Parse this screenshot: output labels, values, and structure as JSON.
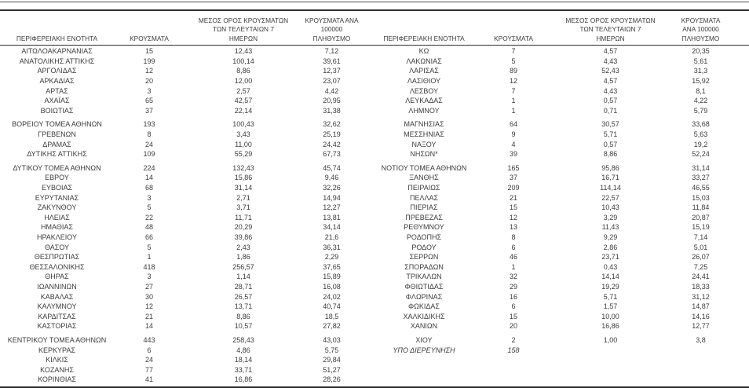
{
  "table": {
    "headers": {
      "region": "ΠΕΡΙΦΕΡΕΙΑΚΗ ΕΝΟΤΗΤΑ",
      "cases": "ΚΡΟΥΣΜΑΤΑ",
      "avg7": "ΜΕΣΟΣ ΟΡΟΣ ΚΡΟΥΣΜΑΤΩΝ\nΤΩΝ ΤΕΛΕΥΤΑΙΩΝ 7\nΗΜΕΡΩΝ",
      "per100k": "ΚΡΟΥΣΜΑΤΑ ΑΝΑ 100000\nΠΛΗΘΥΣΜΟ"
    },
    "text_color": "#3c3c3c",
    "rule_color": "#2e2e2e",
    "rows": [
      {
        "l": [
          "ΑΙΤΩΛΟΑΚΑΡΝΑΝΙΑΣ",
          "15",
          "12,43",
          "7,12"
        ],
        "r": [
          "ΚΩ",
          "7",
          "4,57",
          "20,35"
        ]
      },
      {
        "l": [
          "ΑΝΑΤΟΛΙΚΗΣ ΑΤΤΙΚΗΣ",
          "199",
          "100,14",
          "39,61"
        ],
        "r": [
          "ΛΑΚΩΝΙΑΣ",
          "5",
          "4,43",
          "5,61"
        ]
      },
      {
        "l": [
          "ΑΡΓΟΛΙΔΑΣ",
          "12",
          "8,86",
          "12,37"
        ],
        "r": [
          "ΛΑΡΙΣΑΣ",
          "89",
          "52,43",
          "31,3"
        ]
      },
      {
        "l": [
          "ΑΡΚΑΔΙΑΣ",
          "20",
          "12,00",
          "23,07"
        ],
        "r": [
          "ΛΑΣΙΘΙΟΥ",
          "12",
          "4,57",
          "15,92"
        ]
      },
      {
        "l": [
          "ΑΡΤΑΣ",
          "3",
          "2,57",
          "4,42"
        ],
        "r": [
          "ΛΕΣΒΟΥ",
          "7",
          "4,43",
          "8,1"
        ]
      },
      {
        "l": [
          "ΑΧΑΪΑΣ",
          "65",
          "42,57",
          "20,95"
        ],
        "r": [
          "ΛΕΥΚΑΔΑΣ",
          "1",
          "0,57",
          "4,22"
        ]
      },
      {
        "l": [
          "ΒΟΙΩΤΙΑΣ",
          "37",
          "22,14",
          "31,38"
        ],
        "r": [
          "ΛΗΜΝΟΥ",
          "1",
          "0,71",
          "5,79"
        ]
      },
      {
        "gap": true,
        "l": [
          "ΒΟΡΕΙΟΥ ΤΟΜΕΑ ΑΘΗΝΩΝ",
          "193",
          "100,43",
          "32,62"
        ],
        "r": [
          "ΜΑΓΝΗΣΙΑΣ",
          "64",
          "30,57",
          "33,68"
        ]
      },
      {
        "l": [
          "ΓΡΕΒΕΝΩΝ",
          "8",
          "3,43",
          "25,19"
        ],
        "r": [
          "ΜΕΣΣΗΝΙΑΣ",
          "9",
          "5,71",
          "5,63"
        ]
      },
      {
        "l": [
          "ΔΡΑΜΑΣ",
          "24",
          "11,00",
          "24,42"
        ],
        "r": [
          "ΝΑΞΟΥ",
          "4",
          "0,57",
          "19,2"
        ]
      },
      {
        "l": [
          "ΔΥΤΙΚΗΣ ΑΤΤΙΚΗΣ",
          "109",
          "55,29",
          "67,73"
        ],
        "r": [
          "ΝΗΣΩΝ*",
          "39",
          "8,86",
          "52,24"
        ]
      },
      {
        "gap": true,
        "l": [
          "ΔΥΤΙΚΟΥ ΤΟΜΕΑ ΑΘΗΝΩΝ",
          "224",
          "132,43",
          "45,74"
        ],
        "r": [
          "ΝΟΤΙΟΥ ΤΟΜΕΑ ΑΘΗΝΩΝ",
          "165",
          "95,86",
          "31,14"
        ]
      },
      {
        "l": [
          "ΕΒΡΟΥ",
          "14",
          "15,86",
          "9,46"
        ],
        "r": [
          "ΞΑΝΘΗΣ",
          "37",
          "16,71",
          "33,27"
        ]
      },
      {
        "l": [
          "ΕΥΒΟΙΑΣ",
          "68",
          "31,14",
          "32,26"
        ],
        "r": [
          "ΠΕΙΡΑΙΩΣ",
          "209",
          "114,14",
          "46,55"
        ]
      },
      {
        "l": [
          "ΕΥΡΥΤΑΝΙΑΣ",
          "3",
          "2,71",
          "14,94"
        ],
        "r": [
          "ΠΕΛΛΑΣ",
          "21",
          "22,57",
          "15,03"
        ]
      },
      {
        "l": [
          "ΖΑΚΥΝΘΟΥ",
          "5",
          "3,71",
          "12,27"
        ],
        "r": [
          "ΠΙΕΡΙΑΣ",
          "15",
          "10,43",
          "11,84"
        ]
      },
      {
        "l": [
          "ΗΛΕΙΑΣ",
          "22",
          "11,71",
          "13,81"
        ],
        "r": [
          "ΠΡΕΒΕΖΑΣ",
          "12",
          "3,29",
          "20,87"
        ]
      },
      {
        "l": [
          "ΗΜΑΘΙΑΣ",
          "48",
          "20,29",
          "34,14"
        ],
        "r": [
          "ΡΕΘΥΜΝΟΥ",
          "13",
          "11,43",
          "15,19"
        ]
      },
      {
        "l": [
          "ΗΡΑΚΛΕΙΟΥ",
          "66",
          "39,86",
          "21,6"
        ],
        "r": [
          "ΡΟΔΟΠΗΣ",
          "8",
          "9,29",
          "7,14"
        ]
      },
      {
        "l": [
          "ΘΑΣΟΥ",
          "5",
          "2,43",
          "36,31"
        ],
        "r": [
          "ΡΟΔΟΥ",
          "6",
          "2,86",
          "5,01"
        ]
      },
      {
        "l": [
          "ΘΕΣΠΡΩΤΙΑΣ",
          "1",
          "1,86",
          "2,29"
        ],
        "r": [
          "ΣΕΡΡΩΝ",
          "46",
          "23,71",
          "26,07"
        ]
      },
      {
        "l": [
          "ΘΕΣΣΑΛΟΝΙΚΗΣ",
          "418",
          "256,57",
          "37,65"
        ],
        "r": [
          "ΣΠΟΡΑΔΩΝ",
          "1",
          "0,43",
          "7,25"
        ]
      },
      {
        "l": [
          "ΘΗΡΑΣ",
          "3",
          "1,14",
          "15,89"
        ],
        "r": [
          "ΤΡΙΚΑΛΩΝ",
          "32",
          "14,14",
          "24,41"
        ]
      },
      {
        "l": [
          "ΙΩΑΝΝΙΝΩΝ",
          "27",
          "28,71",
          "16,08"
        ],
        "r": [
          "ΦΘΙΩΤΙΔΑΣ",
          "29",
          "19,29",
          "18,33"
        ]
      },
      {
        "l": [
          "ΚΑΒΑΛΑΣ",
          "30",
          "26,57",
          "24,02"
        ],
        "r": [
          "ΦΛΩΡΙΝΑΣ",
          "16",
          "5,71",
          "31,12"
        ]
      },
      {
        "l": [
          "ΚΑΛΥΜΝΟΥ",
          "12",
          "13,71",
          "40,74"
        ],
        "r": [
          "ΦΩΚΙΔΑΣ",
          "6",
          "1,57",
          "14,87"
        ]
      },
      {
        "l": [
          "ΚΑΡΔΙΤΣΑΣ",
          "21",
          "8,86",
          "18,5"
        ],
        "r": [
          "ΧΑΛΚΙΔΙΚΗΣ",
          "15",
          "10,00",
          "14,16"
        ]
      },
      {
        "l": [
          "ΚΑΣΤΟΡΙΑΣ",
          "14",
          "10,57",
          "27,82"
        ],
        "r": [
          "ΧΑΝΙΩΝ",
          "20",
          "16,86",
          "12,77"
        ]
      },
      {
        "gap": true,
        "l": [
          "ΚΕΝΤΡΙΚΟΥ ΤΟΜΕΑ ΑΘΗΝΩΝ",
          "443",
          "258,43",
          "43,03"
        ],
        "r": [
          "ΧΙΟΥ",
          "2",
          "1,00",
          "3,8"
        ]
      },
      {
        "l": [
          "ΚΕΡΚΥΡΑΣ",
          "6",
          "4,86",
          "5,75"
        ],
        "r": [
          "ΥΠΟ ΔΙΕΡΕΥΝΗΣΗ",
          "158",
          "",
          ""
        ],
        "r_italic": true
      },
      {
        "l": [
          "ΚΙΛΚΙΣ",
          "24",
          "18,14",
          "29,84"
        ],
        "r": [
          "",
          "",
          "",
          ""
        ]
      },
      {
        "l": [
          "ΚΟΖΑΝΗΣ",
          "77",
          "33,71",
          "51,27"
        ],
        "r": [
          "",
          "",
          "",
          ""
        ]
      },
      {
        "l": [
          "ΚΟΡΙΝΘΙΑΣ",
          "41",
          "16,86",
          "28,26"
        ],
        "r": [
          "",
          "",
          "",
          ""
        ]
      }
    ]
  }
}
